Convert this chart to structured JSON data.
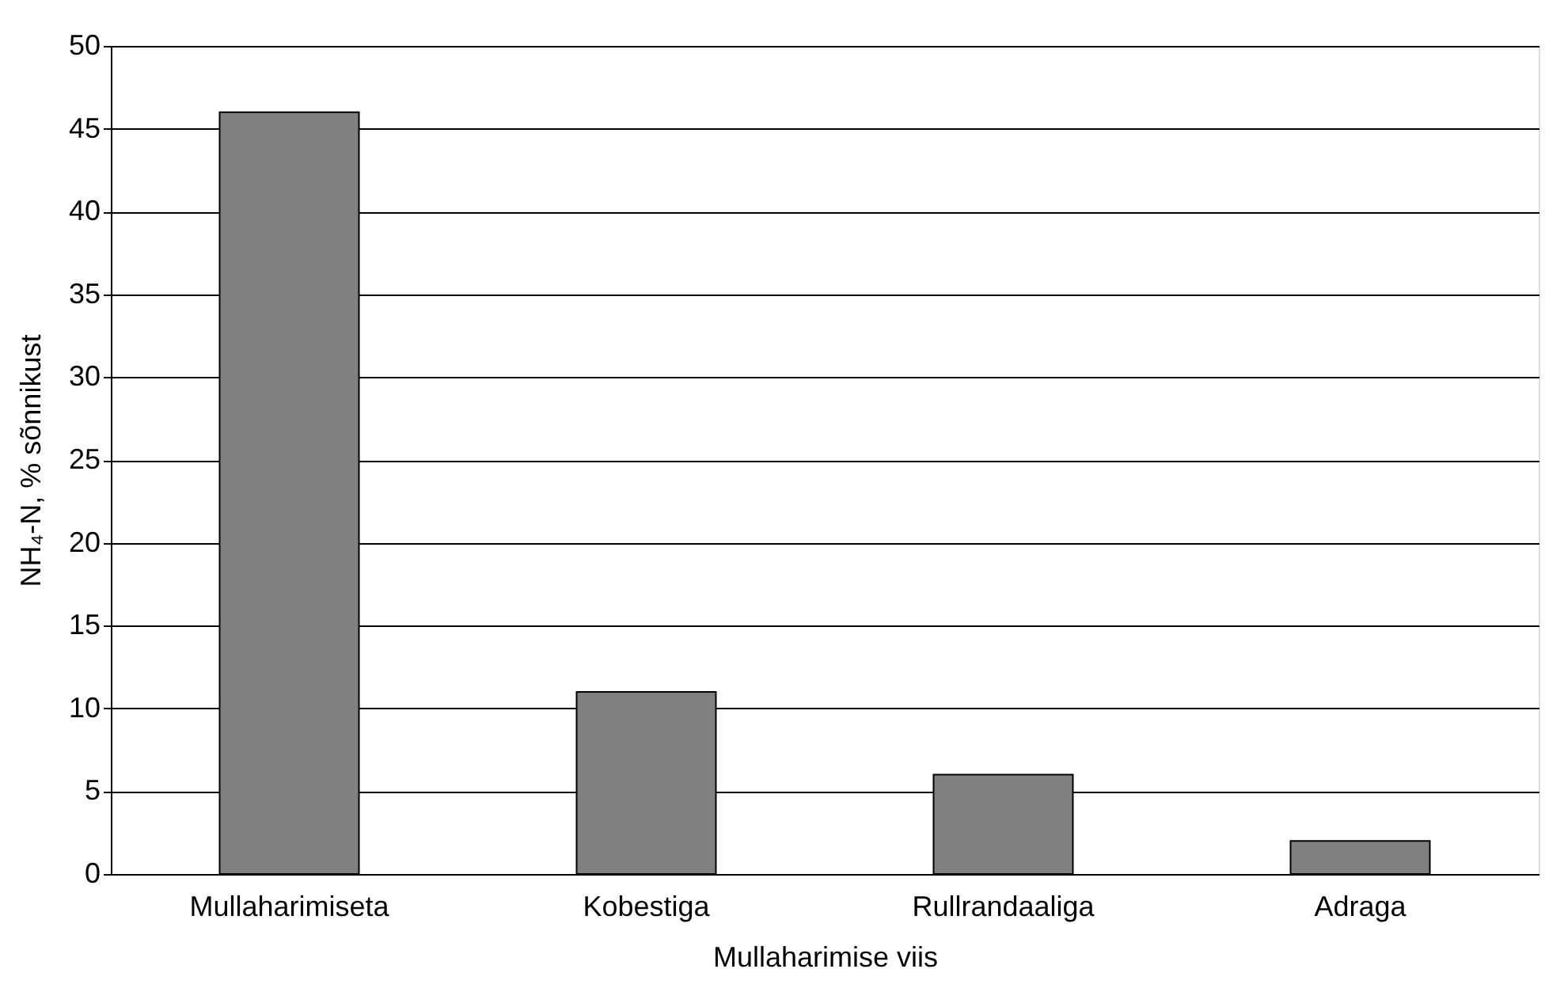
{
  "chart_data": {
    "type": "bar",
    "xlabel": "Mullaharimise viis",
    "ylabel": "NH₄-N, % sõnnikust",
    "categories": [
      "Mullaharimiseta",
      "Kobestiga",
      "Rullrandaaliga",
      "Adraga"
    ],
    "values": [
      46,
      11,
      6,
      2
    ],
    "color": "#808080",
    "ylim": [
      0,
      50
    ],
    "yticks": [
      0,
      5,
      10,
      15,
      20,
      25,
      30,
      35,
      40,
      45,
      50
    ],
    "grid": "y"
  }
}
